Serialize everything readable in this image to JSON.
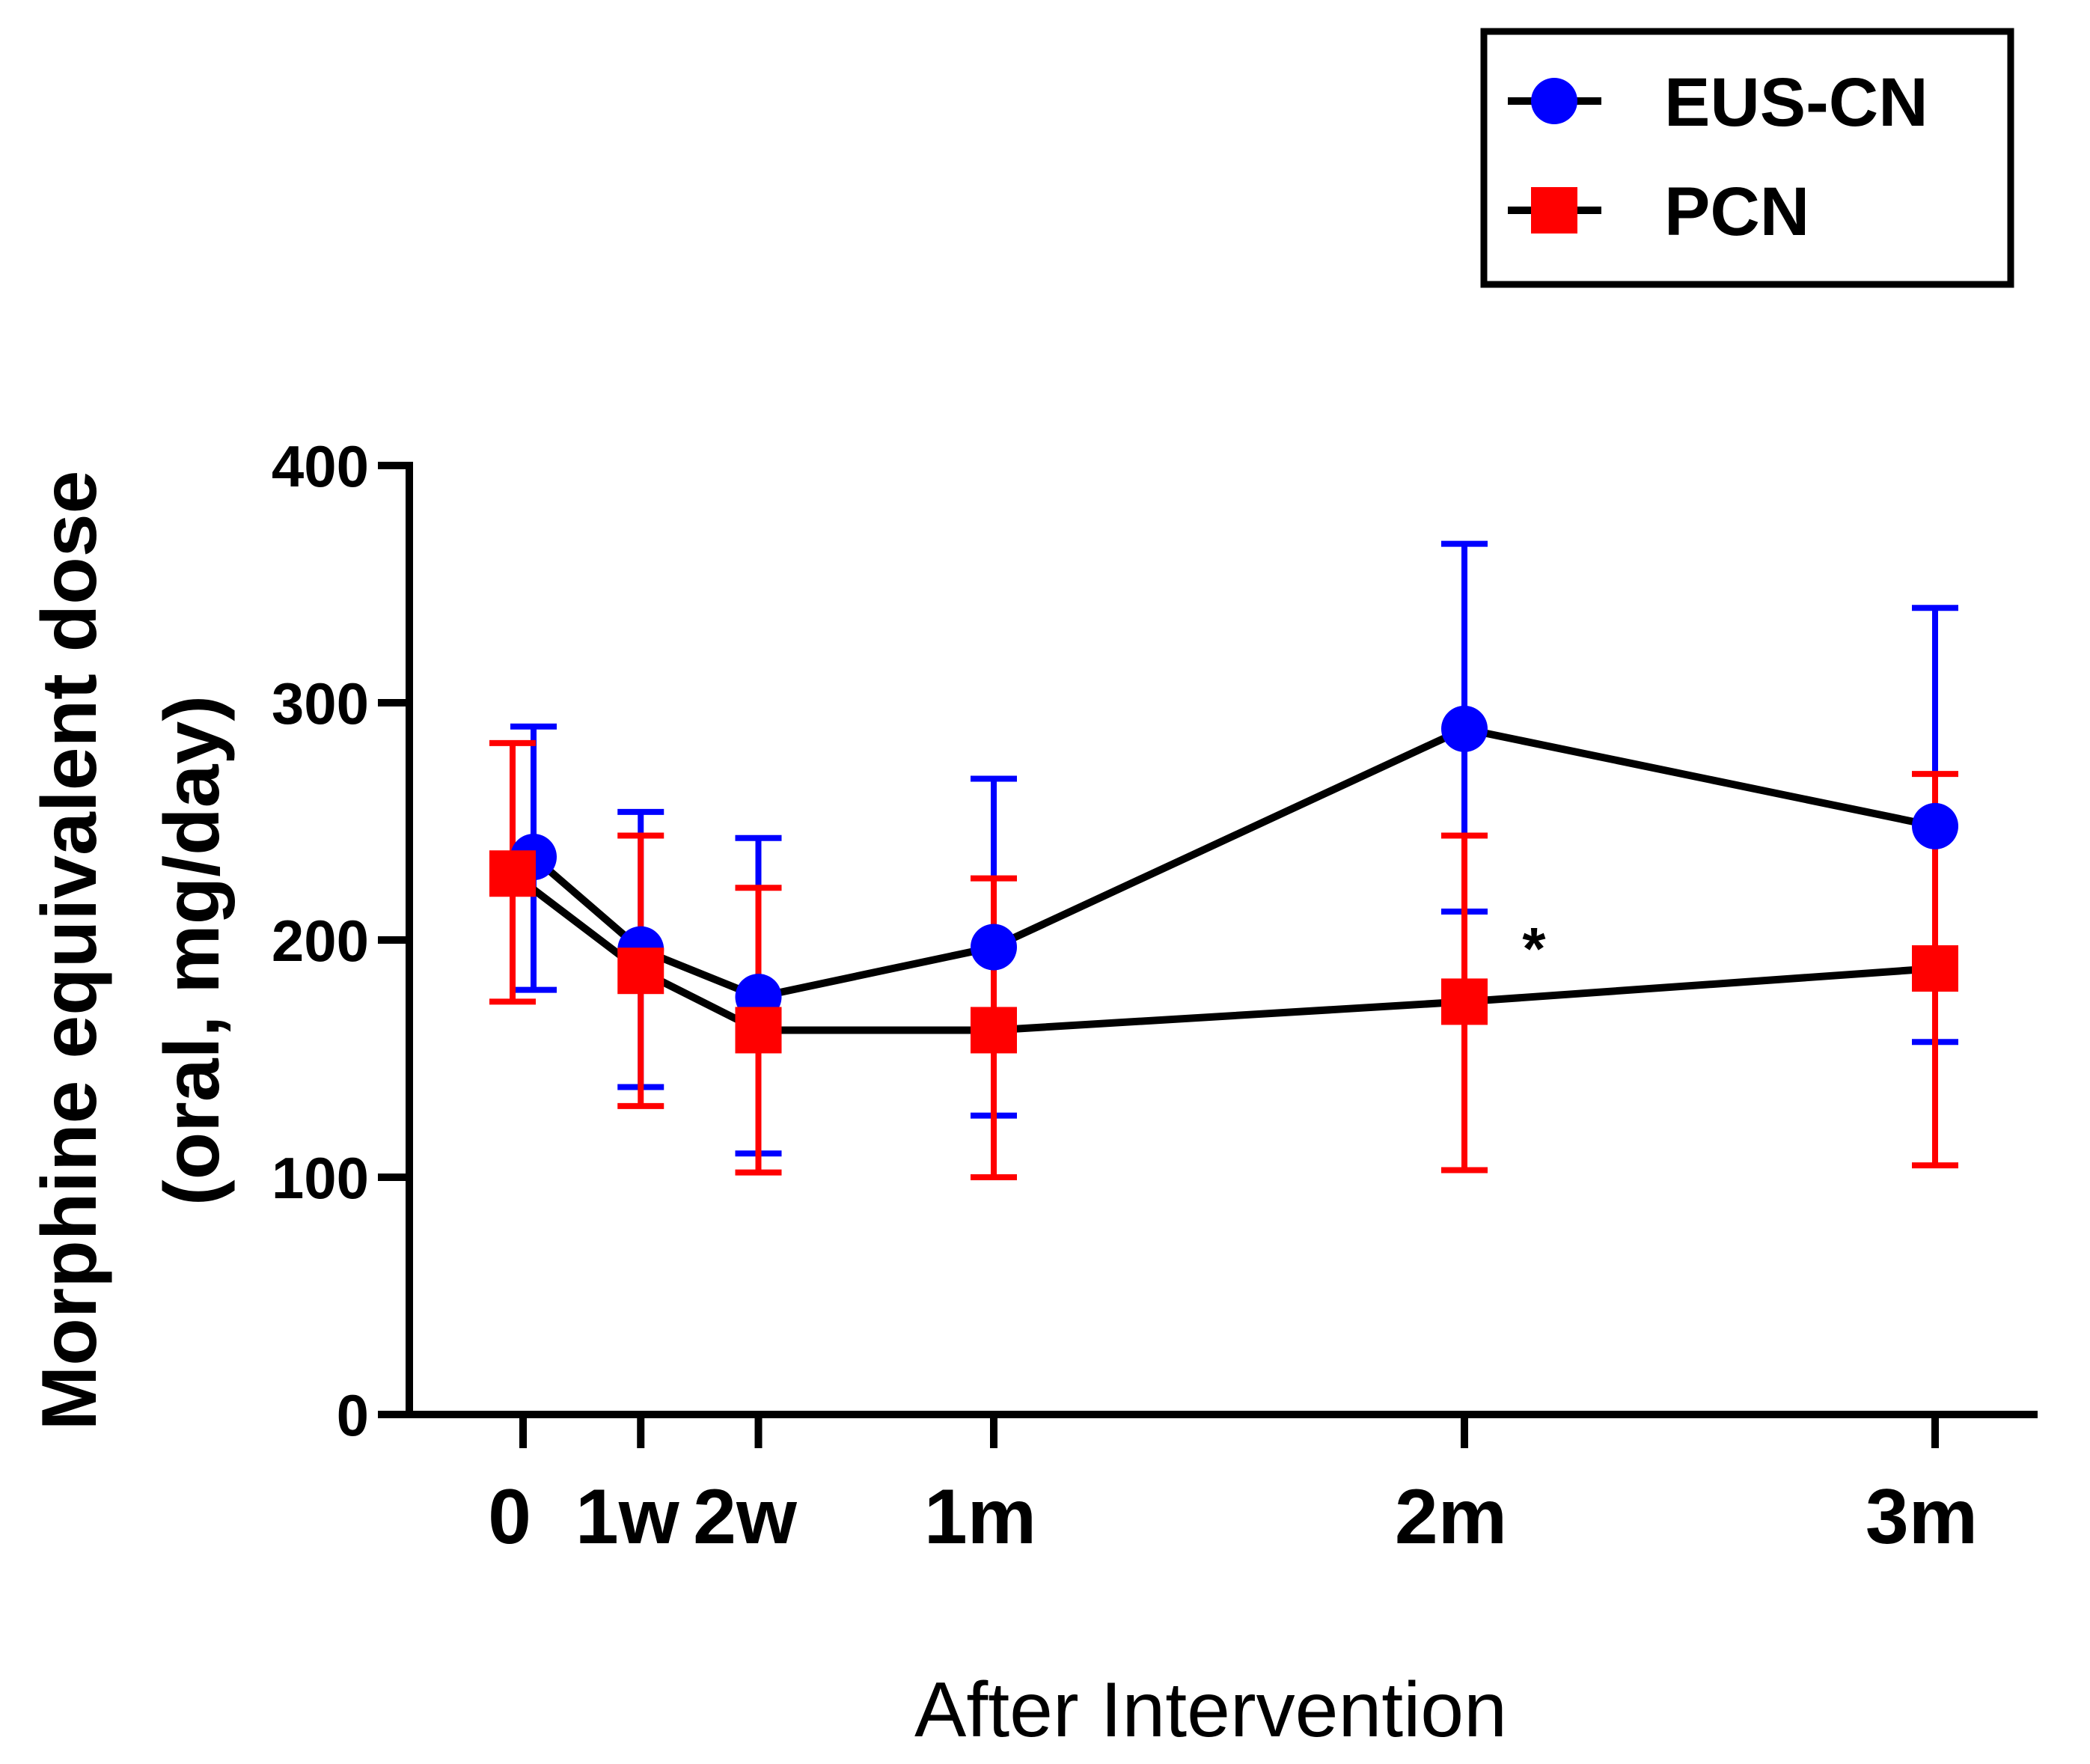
{
  "chart_data": {
    "type": "line",
    "xlabel": "After Intervention",
    "ylabel_lines": [
      "Morphine equivalent dose",
      "(oral, mg/day)"
    ],
    "ylim": [
      0,
      400
    ],
    "yticks": [
      0,
      100,
      200,
      300,
      400
    ],
    "x_positions_months": [
      0,
      0.25,
      0.5,
      1,
      2,
      3
    ],
    "categories": [
      "0",
      "1w",
      "2w",
      "1m",
      "2m",
      "3m"
    ],
    "series": [
      {
        "name": "EUS-CN",
        "color": "#0000ff",
        "marker": "circle",
        "values": [
          235,
          196,
          176,
          197,
          289,
          248
        ],
        "err_high": [
          290,
          254,
          243,
          268,
          367,
          340
        ],
        "err_low": [
          179,
          138,
          110,
          126,
          212,
          157
        ]
      },
      {
        "name": "PCN",
        "color": "#ff0000",
        "marker": "square",
        "values": [
          228,
          187,
          162,
          162,
          174,
          188
        ],
        "err_high": [
          283,
          244,
          222,
          226,
          244,
          270
        ],
        "err_low": [
          174,
          130,
          102,
          100,
          103,
          105
        ]
      }
    ],
    "annotations": [
      {
        "text": "*",
        "category": "2m"
      }
    ],
    "legend_position": "top-right"
  }
}
